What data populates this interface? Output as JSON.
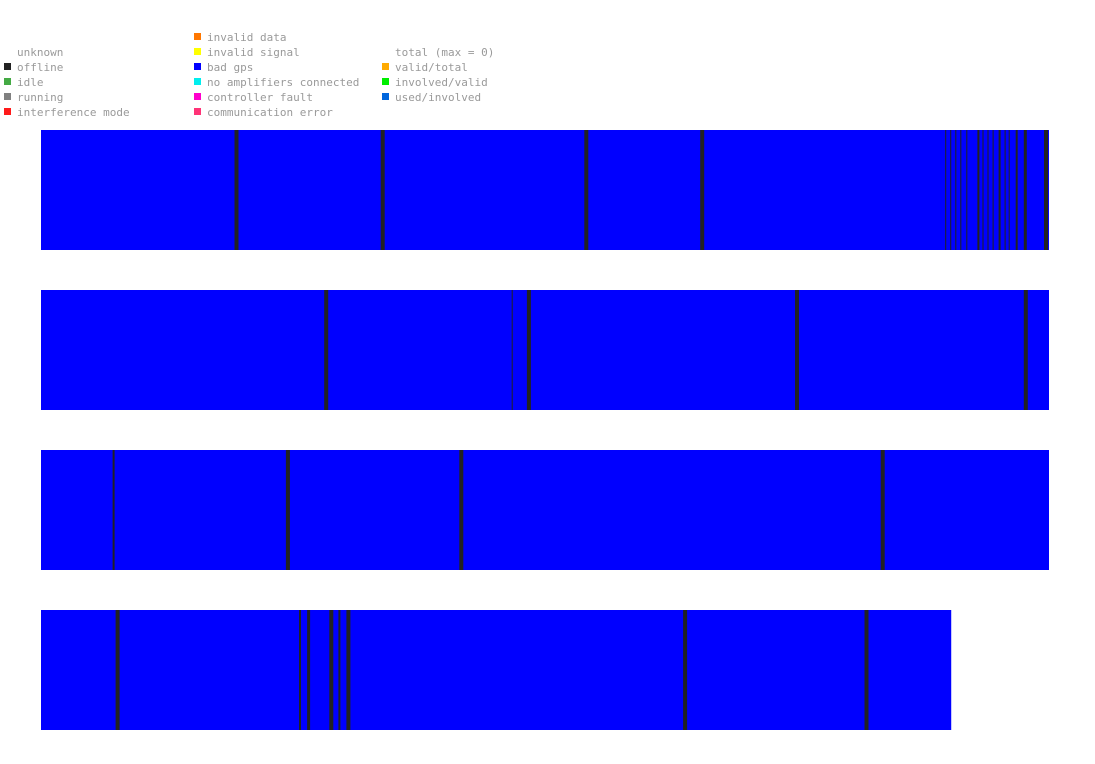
{
  "legend": {
    "columns": [
      {
        "items": [
          {
            "label": "unknown",
            "color": ""
          },
          {
            "label": "offline",
            "color": "#222222"
          },
          {
            "label": "idle",
            "color": "#44aa44"
          },
          {
            "label": "running",
            "color": "#808080"
          },
          {
            "label": "interference mode",
            "color": "#ff1a1a"
          }
        ]
      },
      {
        "items": [
          {
            "label": "invalid data",
            "color": "#ff7700"
          },
          {
            "label": "invalid signal",
            "color": "#ffff00"
          },
          {
            "label": "bad gps",
            "color": "#0000ff"
          },
          {
            "label": "no amplifiers connected",
            "color": "#00eeee"
          },
          {
            "label": "controller fault",
            "color": "#ff00cc"
          },
          {
            "label": "communication error",
            "color": "#ff3377"
          }
        ]
      },
      {
        "items": [
          {
            "label": "total (max = 0)",
            "color": ""
          },
          {
            "label": "valid/total",
            "color": "#ffaa00"
          },
          {
            "label": "involved/valid",
            "color": "#00ee00"
          },
          {
            "label": "used/involved",
            "color": "#0066dd"
          }
        ]
      }
    ]
  },
  "chart_data": {
    "type": "heatmap",
    "base_state": "bad gps",
    "event_state": "offline",
    "colors": {
      "bad gps": "#0000ff",
      "offline": "#222222"
    },
    "rows": [
      {
        "coverage": 1.0,
        "events": [
          {
            "at": 0.192,
            "width": 0.004
          },
          {
            "at": 0.337,
            "width": 0.004
          },
          {
            "at": 0.539,
            "width": 0.004
          },
          {
            "at": 0.654,
            "width": 0.004
          },
          {
            "at": 0.897,
            "width": 0.001
          },
          {
            "at": 0.902,
            "width": 0.001
          },
          {
            "at": 0.907,
            "width": 0.001
          },
          {
            "at": 0.912,
            "width": 0.001
          },
          {
            "at": 0.918,
            "width": 0.001
          },
          {
            "at": 0.929,
            "width": 0.002
          },
          {
            "at": 0.934,
            "width": 0.001
          },
          {
            "at": 0.939,
            "width": 0.001
          },
          {
            "at": 0.944,
            "width": 0.001
          },
          {
            "at": 0.95,
            "width": 0.002
          },
          {
            "at": 0.956,
            "width": 0.001
          },
          {
            "at": 0.96,
            "width": 0.001
          },
          {
            "at": 0.967,
            "width": 0.002
          },
          {
            "at": 0.975,
            "width": 0.003
          },
          {
            "at": 0.995,
            "width": 0.004
          }
        ]
      },
      {
        "coverage": 1.0,
        "events": [
          {
            "at": 0.281,
            "width": 0.004
          },
          {
            "at": 0.467,
            "width": 0.001
          },
          {
            "at": 0.482,
            "width": 0.004
          },
          {
            "at": 0.748,
            "width": 0.004
          },
          {
            "at": 0.975,
            "width": 0.004
          }
        ]
      },
      {
        "coverage": 1.0,
        "events": [
          {
            "at": 0.071,
            "width": 0.002
          },
          {
            "at": 0.243,
            "width": 0.004
          },
          {
            "at": 0.415,
            "width": 0.004
          },
          {
            "at": 0.833,
            "width": 0.004
          }
        ]
      },
      {
        "coverage": 0.903,
        "events": [
          {
            "at": 0.074,
            "width": 0.004
          },
          {
            "at": 0.256,
            "width": 0.002
          },
          {
            "at": 0.264,
            "width": 0.003
          },
          {
            "at": 0.286,
            "width": 0.004
          },
          {
            "at": 0.295,
            "width": 0.002
          },
          {
            "at": 0.303,
            "width": 0.004
          },
          {
            "at": 0.637,
            "width": 0.004
          },
          {
            "at": 0.817,
            "width": 0.004
          }
        ]
      }
    ]
  }
}
